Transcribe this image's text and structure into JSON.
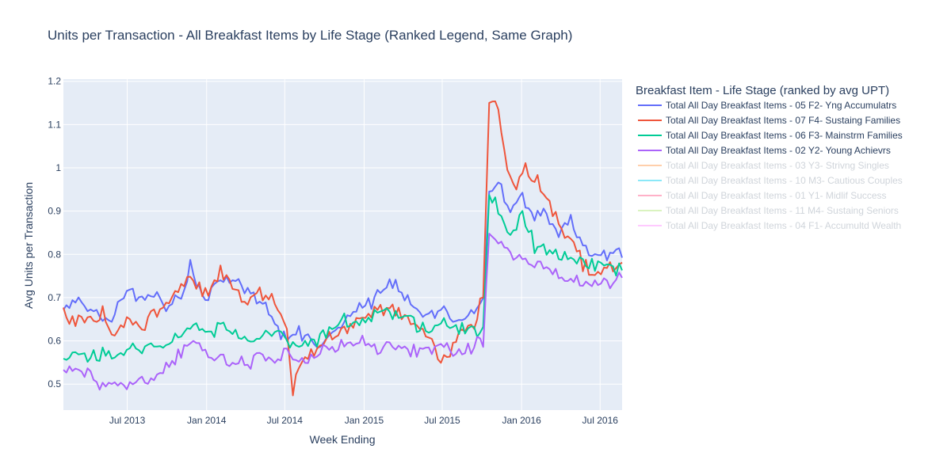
{
  "chart_data": {
    "type": "line",
    "title": "Units per Transaction - All Breakfast Items by Life Stage (Ranked Legend, Same Graph)",
    "xlabel": "Week Ending",
    "ylabel": "Avg Units per Transaction",
    "x_ticks": [
      "Jul 2013",
      "Jan 2014",
      "Jul 2014",
      "Jan 2015",
      "Jul 2015",
      "Jan 2016",
      "Jul 2016"
    ],
    "y_ticks": [
      "0.5",
      "0.6",
      "0.7",
      "0.8",
      "0.9",
      "1",
      "1.1",
      "1.2"
    ],
    "xlim": [
      "2013-02-03",
      "2016-08-21"
    ],
    "ylim": [
      0.44,
      1.205
    ],
    "grid": true,
    "legend_title": "Breakfast Item - Life Stage (ranked by avg UPT)",
    "legend_position": "right",
    "series": [
      {
        "name": "Total All Day Breakfast Items - 05 F2- Yng Accumulatrs",
        "color": "#636efa",
        "visible": true,
        "x": [
          "2013-02-03",
          "2013-03-03",
          "2013-04-07",
          "2013-05-05",
          "2013-06-02",
          "2013-07-07",
          "2013-08-04",
          "2013-09-01",
          "2013-10-06",
          "2013-11-03",
          "2013-11-24",
          "2013-12-08",
          "2014-01-05",
          "2014-02-02",
          "2014-03-02",
          "2014-04-06",
          "2014-05-04",
          "2014-06-01",
          "2014-07-06",
          "2014-08-03",
          "2014-09-07",
          "2014-10-05",
          "2014-11-02",
          "2014-12-07",
          "2015-01-04",
          "2015-02-01",
          "2015-03-01",
          "2015-04-05",
          "2015-05-03",
          "2015-06-07",
          "2015-07-05",
          "2015-08-02",
          "2015-09-06",
          "2015-10-04",
          "2015-10-18",
          "2015-11-08",
          "2015-12-06",
          "2016-01-03",
          "2016-01-31",
          "2016-02-28",
          "2016-03-27",
          "2016-04-24",
          "2016-05-22",
          "2016-06-19",
          "2016-07-17",
          "2016-08-14",
          "2016-08-21"
        ],
        "y": [
          0.67,
          0.69,
          0.68,
          0.65,
          0.66,
          0.72,
          0.69,
          0.71,
          0.68,
          0.7,
          0.78,
          0.73,
          0.7,
          0.74,
          0.75,
          0.71,
          0.68,
          0.66,
          0.6,
          0.62,
          0.58,
          0.6,
          0.63,
          0.66,
          0.68,
          0.7,
          0.73,
          0.71,
          0.68,
          0.66,
          0.67,
          0.65,
          0.66,
          0.7,
          0.94,
          0.97,
          0.89,
          0.93,
          0.89,
          0.9,
          0.85,
          0.88,
          0.82,
          0.79,
          0.8,
          0.82,
          0.8
        ]
      },
      {
        "name": "Total All Day Breakfast Items - 07 F4- Sustaing Families",
        "color": "#ef553b",
        "visible": true,
        "x": [
          "2013-02-03",
          "2013-03-03",
          "2013-04-07",
          "2013-05-05",
          "2013-06-02",
          "2013-07-07",
          "2013-08-04",
          "2013-09-01",
          "2013-10-06",
          "2013-11-03",
          "2013-11-24",
          "2013-12-08",
          "2014-01-05",
          "2014-02-02",
          "2014-03-02",
          "2014-04-06",
          "2014-05-04",
          "2014-06-01",
          "2014-07-06",
          "2014-07-20",
          "2014-08-03",
          "2014-09-07",
          "2014-10-05",
          "2014-11-02",
          "2014-12-07",
          "2015-01-04",
          "2015-02-01",
          "2015-03-01",
          "2015-04-05",
          "2015-05-03",
          "2015-06-07",
          "2015-06-28",
          "2015-07-19",
          "2015-08-16",
          "2015-09-13",
          "2015-10-04",
          "2015-10-18",
          "2015-11-01",
          "2015-11-22",
          "2015-12-20",
          "2016-01-03",
          "2016-01-31",
          "2016-02-28",
          "2016-03-27",
          "2016-04-24",
          "2016-05-22",
          "2016-06-19",
          "2016-07-17",
          "2016-08-14",
          "2016-08-21"
        ],
        "y": [
          0.66,
          0.64,
          0.65,
          0.66,
          0.6,
          0.66,
          0.63,
          0.67,
          0.69,
          0.72,
          0.75,
          0.73,
          0.71,
          0.76,
          0.72,
          0.69,
          0.71,
          0.7,
          0.62,
          0.47,
          0.55,
          0.57,
          0.6,
          0.62,
          0.64,
          0.65,
          0.67,
          0.68,
          0.66,
          0.63,
          0.6,
          0.54,
          0.58,
          0.62,
          0.64,
          0.71,
          1.15,
          1.16,
          1.03,
          0.96,
          1.0,
          0.98,
          0.92,
          0.88,
          0.83,
          0.78,
          0.75,
          0.76,
          0.78,
          0.78
        ]
      },
      {
        "name": "Total All Day Breakfast Items - 06 F3- Mainstrm Families",
        "color": "#00cc96",
        "visible": true,
        "x": [
          "2013-02-03",
          "2013-03-03",
          "2013-04-07",
          "2013-05-05",
          "2013-06-02",
          "2013-07-07",
          "2013-08-04",
          "2013-09-01",
          "2013-10-06",
          "2013-11-03",
          "2013-12-01",
          "2014-01-05",
          "2014-02-02",
          "2014-03-02",
          "2014-04-06",
          "2014-05-04",
          "2014-06-01",
          "2014-07-06",
          "2014-08-03",
          "2014-09-07",
          "2014-10-05",
          "2014-11-02",
          "2014-12-07",
          "2015-01-04",
          "2015-02-01",
          "2015-03-01",
          "2015-04-05",
          "2015-05-03",
          "2015-06-07",
          "2015-07-05",
          "2015-08-02",
          "2015-09-06",
          "2015-10-04",
          "2015-10-18",
          "2015-11-08",
          "2015-12-06",
          "2016-01-03",
          "2016-01-31",
          "2016-02-28",
          "2016-03-27",
          "2016-04-24",
          "2016-05-22",
          "2016-06-19",
          "2016-07-17",
          "2016-08-14",
          "2016-08-21"
        ],
        "y": [
          0.55,
          0.57,
          0.56,
          0.57,
          0.56,
          0.58,
          0.58,
          0.59,
          0.6,
          0.62,
          0.64,
          0.61,
          0.63,
          0.62,
          0.6,
          0.61,
          0.63,
          0.6,
          0.59,
          0.6,
          0.62,
          0.64,
          0.65,
          0.64,
          0.66,
          0.67,
          0.65,
          0.63,
          0.62,
          0.64,
          0.63,
          0.62,
          0.64,
          0.93,
          0.91,
          0.83,
          0.9,
          0.82,
          0.8,
          0.79,
          0.79,
          0.78,
          0.77,
          0.78,
          0.76,
          0.77
        ]
      },
      {
        "name": "Total All Day Breakfast Items - 02 Y2- Young Achievrs",
        "color": "#ab63fa",
        "visible": true,
        "x": [
          "2013-02-03",
          "2013-03-03",
          "2013-04-07",
          "2013-05-05",
          "2013-06-02",
          "2013-07-07",
          "2013-08-04",
          "2013-09-01",
          "2013-10-06",
          "2013-11-03",
          "2013-12-01",
          "2014-01-05",
          "2014-02-02",
          "2014-03-02",
          "2014-04-06",
          "2014-05-04",
          "2014-06-01",
          "2014-07-06",
          "2014-08-03",
          "2014-09-07",
          "2014-10-05",
          "2014-11-02",
          "2014-12-07",
          "2015-01-04",
          "2015-02-01",
          "2015-03-01",
          "2015-04-05",
          "2015-05-03",
          "2015-06-07",
          "2015-07-05",
          "2015-08-02",
          "2015-09-06",
          "2015-10-04",
          "2015-10-18",
          "2015-11-08",
          "2015-12-06",
          "2016-01-03",
          "2016-01-31",
          "2016-02-28",
          "2016-03-27",
          "2016-04-24",
          "2016-05-22",
          "2016-06-19",
          "2016-07-17",
          "2016-08-14",
          "2016-08-21"
        ],
        "y": [
          0.52,
          0.54,
          0.52,
          0.5,
          0.49,
          0.5,
          0.51,
          0.52,
          0.54,
          0.57,
          0.61,
          0.57,
          0.56,
          0.55,
          0.55,
          0.57,
          0.56,
          0.57,
          0.56,
          0.57,
          0.58,
          0.59,
          0.6,
          0.6,
          0.58,
          0.59,
          0.58,
          0.57,
          0.58,
          0.59,
          0.58,
          0.58,
          0.6,
          0.85,
          0.84,
          0.8,
          0.79,
          0.78,
          0.77,
          0.74,
          0.75,
          0.74,
          0.73,
          0.73,
          0.74,
          0.74
        ]
      },
      {
        "name": "Total All Day Breakfast Items - 03 Y3- Strivng Singles",
        "color": "#ffa15a",
        "visible": false,
        "x": [],
        "y": []
      },
      {
        "name": "Total All Day Breakfast Items - 10 M3- Cautious Couples",
        "color": "#19d3f3",
        "visible": false,
        "x": [],
        "y": []
      },
      {
        "name": "Total All Day Breakfast Items - 01 Y1- Midlif Success",
        "color": "#ff6692",
        "visible": false,
        "x": [],
        "y": []
      },
      {
        "name": "Total All Day Breakfast Items - 11 M4- Sustaing Seniors",
        "color": "#b6e880",
        "visible": false,
        "x": [],
        "y": []
      },
      {
        "name": "Total All Day Breakfast Items - 04 F1- Accumultd Wealth",
        "color": "#ff97ff",
        "visible": false,
        "x": [],
        "y": []
      }
    ]
  },
  "colors": {
    "plot_background": "#e5ecf6",
    "grid": "#ffffff",
    "text": "#2a3f5f",
    "legend_hidden_text": "#a0aab6"
  }
}
